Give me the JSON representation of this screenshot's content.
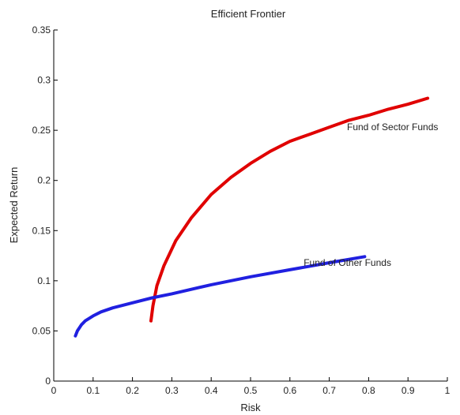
{
  "chart_data": {
    "type": "line",
    "title": "Efficient Frontier",
    "xlabel": "Risk",
    "ylabel": "Expected Return",
    "xlim": [
      0,
      1
    ],
    "ylim": [
      0,
      0.35
    ],
    "xticks": [
      0,
      0.1,
      0.2,
      0.3,
      0.4,
      0.5,
      0.6,
      0.7,
      0.8,
      0.9,
      1
    ],
    "yticks": [
      0,
      0.05,
      0.1,
      0.15,
      0.2,
      0.25,
      0.3,
      0.35
    ],
    "xtick_labels": [
      "0",
      "0.1",
      "0.2",
      "0.3",
      "0.4",
      "0.5",
      "0.6",
      "0.7",
      "0.8",
      "0.9",
      "1"
    ],
    "ytick_labels": [
      "0",
      "0.05",
      "0.1",
      "0.15",
      "0.2",
      "0.25",
      "0.3",
      "0.35"
    ],
    "grid": false,
    "series": [
      {
        "name": "Fund of Sector Funds",
        "color": "#e00000",
        "x": [
          0.247,
          0.252,
          0.262,
          0.28,
          0.31,
          0.35,
          0.4,
          0.45,
          0.5,
          0.55,
          0.6,
          0.65,
          0.7,
          0.75,
          0.8,
          0.85,
          0.9,
          0.95
        ],
        "y": [
          0.06,
          0.075,
          0.095,
          0.115,
          0.14,
          0.163,
          0.186,
          0.203,
          0.217,
          0.229,
          0.239,
          0.246,
          0.253,
          0.26,
          0.265,
          0.271,
          0.276,
          0.282
        ]
      },
      {
        "name": "Fund of Other Funds",
        "color": "#2020e0",
        "x": [
          0.055,
          0.06,
          0.07,
          0.08,
          0.1,
          0.12,
          0.15,
          0.2,
          0.25,
          0.3,
          0.4,
          0.5,
          0.6,
          0.7,
          0.79
        ],
        "y": [
          0.045,
          0.05,
          0.056,
          0.06,
          0.065,
          0.069,
          0.073,
          0.078,
          0.083,
          0.087,
          0.096,
          0.104,
          0.111,
          0.118,
          0.124
        ]
      }
    ],
    "annotations": [
      {
        "text": "Fund of Sector Funds",
        "x": 0.745,
        "y": 0.25
      },
      {
        "text": "Fund of Other Funds",
        "x": 0.635,
        "y": 0.115
      }
    ]
  }
}
